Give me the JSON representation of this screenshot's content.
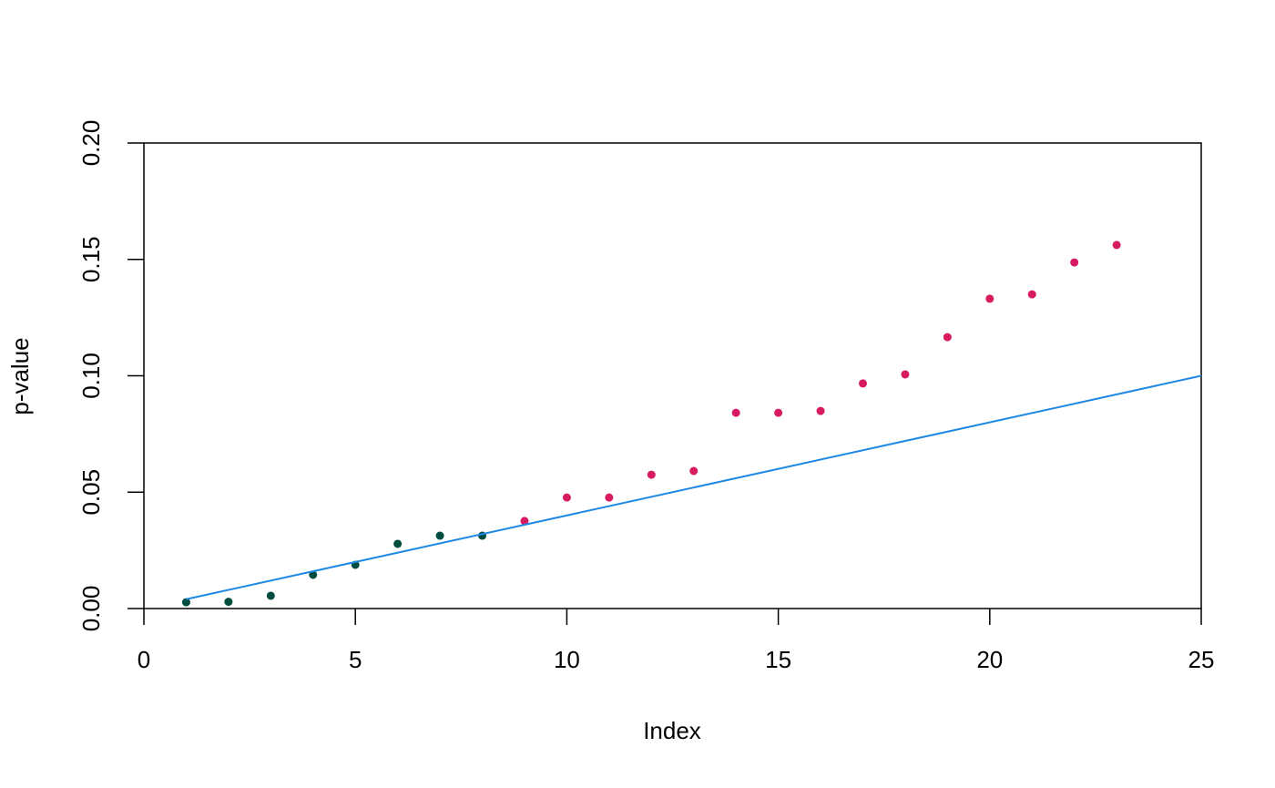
{
  "chart_data": {
    "type": "scatter",
    "xlabel": "Index",
    "ylabel": "p-value",
    "xlim": [
      0,
      25
    ],
    "ylim": [
      0,
      0.2
    ],
    "xticks": [
      0,
      5,
      10,
      15,
      20,
      25
    ],
    "yticks": [
      {
        "value": 0,
        "label": "0.00"
      },
      {
        "value": 0.05,
        "label": "0.05"
      },
      {
        "value": 0.1,
        "label": "0.10"
      },
      {
        "value": 0.15,
        "label": "0.15"
      },
      {
        "value": 0.2,
        "label": "0.20"
      }
    ],
    "series": [
      {
        "type": "scatter",
        "color": "#004d40",
        "x": [
          1,
          2,
          3,
          4,
          5,
          6,
          7,
          8
        ],
        "values": [
          0.0027,
          0.0029,
          0.0055,
          0.0145,
          0.0188,
          0.0278,
          0.0313,
          0.0313
        ]
      },
      {
        "type": "scatter",
        "color": "#d81b60",
        "x": [
          9,
          10,
          11,
          12,
          13,
          14,
          15,
          16,
          17,
          18,
          19,
          20,
          21,
          22,
          23
        ],
        "values": [
          0.0376,
          0.0477,
          0.0477,
          0.0575,
          0.0591,
          0.0841,
          0.0841,
          0.0849,
          0.0967,
          0.1006,
          0.1166,
          0.1331,
          0.135,
          0.1487,
          0.1562
        ]
      },
      {
        "type": "line",
        "color": "#1e88e5",
        "x": [
          1,
          25
        ],
        "values": [
          0.004,
          0.1
        ]
      }
    ]
  }
}
